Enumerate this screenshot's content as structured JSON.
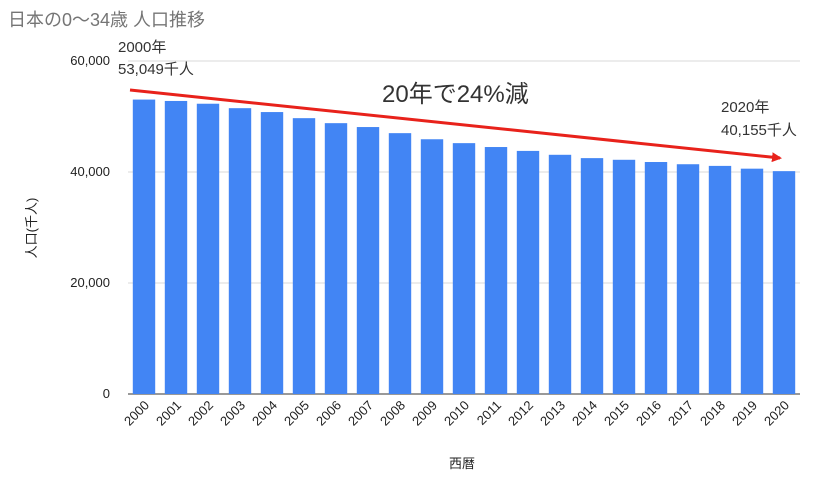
{
  "chart_data": {
    "type": "bar",
    "title": "日本の0〜34歳 人口推移",
    "x_label": "西暦",
    "y_label": "人口(千人)",
    "categories": [
      "2000",
      "2001",
      "2002",
      "2003",
      "2004",
      "2005",
      "2006",
      "2007",
      "2008",
      "2009",
      "2010",
      "2011",
      "2012",
      "2013",
      "2014",
      "2015",
      "2016",
      "2017",
      "2018",
      "2019",
      "2020"
    ],
    "values": [
      53049,
      52800,
      52300,
      51500,
      50800,
      49700,
      48800,
      48100,
      47000,
      45900,
      45200,
      44500,
      43800,
      43100,
      42500,
      42200,
      41800,
      41400,
      41100,
      40600,
      40155
    ],
    "color": "#4285f4",
    "ylim": [
      0,
      60000
    ],
    "yticks": [
      0,
      {
        "value": 20000,
        "label": "20,000"
      },
      {
        "value": 40000,
        "label": "40,000"
      },
      {
        "value": 60000,
        "label": "60,000"
      }
    ],
    "grid": true,
    "annotations": [
      "2000年",
      "53,049千人",
      "20年で24%減",
      "2020年",
      "40,155千人"
    ]
  }
}
